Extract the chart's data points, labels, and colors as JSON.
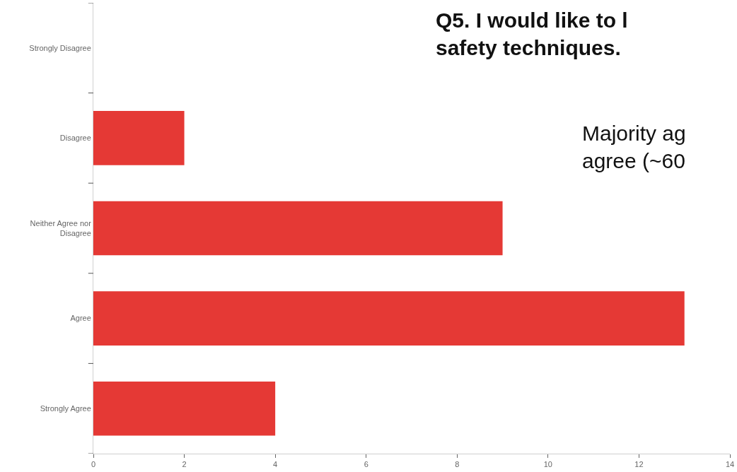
{
  "chart_data": {
    "type": "bar",
    "orientation": "horizontal",
    "title": "Q5. I would like to l\nsafety techniques.",
    "annotations": [
      "Majority ag\nagree (~60"
    ],
    "categories": [
      "Strongly Disagree",
      "Disagree",
      "Neither Agree nor Disagree",
      "Agree",
      "Strongly Agree"
    ],
    "values": [
      0,
      2,
      9,
      13,
      4
    ],
    "color": "#e53935",
    "xlim": [
      0,
      14
    ],
    "xticks": [
      0,
      2,
      4,
      6,
      8,
      10,
      12,
      14
    ],
    "legend": false
  }
}
